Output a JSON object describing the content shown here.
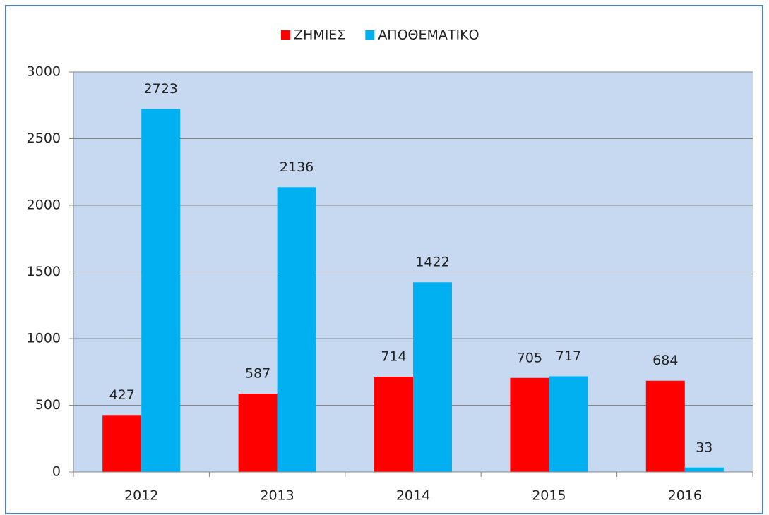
{
  "chart_data": {
    "type": "bar",
    "categories": [
      "2012",
      "2013",
      "2014",
      "2015",
      "2016"
    ],
    "series": [
      {
        "name": "ΖΗΜΙΕΣ",
        "color": "#ff0000",
        "values": [
          427,
          587,
          714,
          705,
          684
        ]
      },
      {
        "name": "ΑΠΟΘΕΜΑΤΙΚΟ",
        "color": "#00b0f0",
        "values": [
          2723,
          2136,
          1422,
          717,
          33
        ]
      }
    ],
    "ylim": [
      0,
      3000
    ],
    "yticks": [
      0,
      500,
      1000,
      1500,
      2000,
      2500,
      3000
    ],
    "grid": true,
    "legend": "top",
    "plot_background": "#c6d9f1"
  }
}
